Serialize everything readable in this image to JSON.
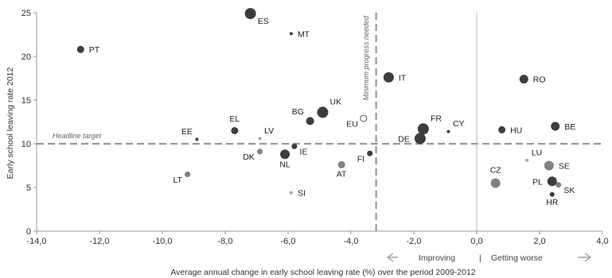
{
  "chart_data": {
    "type": "scatter",
    "title": "",
    "xlabel": "Average annual change in early school leaving rate (%) over the period 2009-2012",
    "ylabel": "Early school leaving rate 2012",
    "xlim": [
      -14,
      4
    ],
    "ylim": [
      0,
      25
    ],
    "x_ticks": [
      -14,
      -12,
      -10,
      -8,
      -6,
      -4,
      -2,
      0,
      2,
      4
    ],
    "x_tick_labels": [
      "-14,0",
      "-12,0",
      "-10,0",
      "-8,0",
      "-6,0",
      "-4,0",
      "-2,0",
      "0,0",
      "2,0",
      "4,0"
    ],
    "y_ticks": [
      0,
      5,
      10,
      15,
      20,
      25
    ],
    "y_tick_labels": [
      "0",
      "5",
      "10",
      "15",
      "20",
      "25"
    ],
    "grid": false,
    "reference_lines": {
      "headline_target": {
        "y": 10,
        "label": "Headline target"
      },
      "minimum_progress": {
        "x": -3.2,
        "label": "Minimum progress needed"
      },
      "zero_line": {
        "x": 0
      }
    },
    "direction_labels": {
      "improving": "Improving",
      "separator": "|",
      "worse": "Getting worse"
    },
    "colors": {
      "dark": "#3d3d3d",
      "mid": "#808080",
      "light": "#a8a8a8",
      "refline": "#999999",
      "axis": "#999999"
    },
    "points": [
      {
        "label": "ES",
        "x": -7.2,
        "y": 24.9,
        "size": 7,
        "shade": "dark",
        "label_pos": "below-right"
      },
      {
        "label": "MT",
        "x": -5.9,
        "y": 22.6,
        "size": 2,
        "shade": "dark",
        "label_pos": "right"
      },
      {
        "label": "PT",
        "x": -12.6,
        "y": 20.8,
        "size": 4.5,
        "shade": "dark",
        "label_pos": "right"
      },
      {
        "label": "IT",
        "x": -2.8,
        "y": 17.6,
        "size": 6.5,
        "shade": "dark",
        "label_pos": "right"
      },
      {
        "label": "RO",
        "x": 1.5,
        "y": 17.4,
        "size": 5.5,
        "shade": "dark",
        "label_pos": "right"
      },
      {
        "label": "UK",
        "x": -4.9,
        "y": 13.6,
        "size": 7,
        "shade": "dark",
        "label_pos": "above-right"
      },
      {
        "label": "BG",
        "x": -5.3,
        "y": 12.6,
        "size": 5,
        "shade": "dark",
        "label_pos": "above-left"
      },
      {
        "label": "EU",
        "x": -3.6,
        "y": 12.9,
        "size": 4,
        "shade": "hollow",
        "label_pos": "below-left"
      },
      {
        "label": "FR",
        "x": -1.7,
        "y": 11.7,
        "size": 7,
        "shade": "dark",
        "label_pos": "above-right"
      },
      {
        "label": "DE",
        "x": -1.8,
        "y": 10.6,
        "size": 7,
        "shade": "dark",
        "label_pos": "left"
      },
      {
        "label": "CY",
        "x": -0.9,
        "y": 11.4,
        "size": 2,
        "shade": "dark",
        "label_pos": "above-right"
      },
      {
        "label": "HU",
        "x": 0.8,
        "y": 11.6,
        "size": 4.5,
        "shade": "dark",
        "label_pos": "right"
      },
      {
        "label": "BE",
        "x": 2.5,
        "y": 12.0,
        "size": 5.5,
        "shade": "dark",
        "label_pos": "right"
      },
      {
        "label": "EL",
        "x": -7.7,
        "y": 11.5,
        "size": 4.5,
        "shade": "dark",
        "label_pos": "above"
      },
      {
        "label": "EE",
        "x": -8.9,
        "y": 10.5,
        "size": 2,
        "shade": "dark",
        "label_pos": "above-left"
      },
      {
        "label": "LV",
        "x": -6.9,
        "y": 10.6,
        "size": 2,
        "shade": "light",
        "label_pos": "above-right"
      },
      {
        "label": "DK",
        "x": -6.9,
        "y": 9.1,
        "size": 3.5,
        "shade": "mid",
        "label_pos": "below-left"
      },
      {
        "label": "NL",
        "x": -6.1,
        "y": 8.8,
        "size": 6,
        "shade": "dark",
        "label_pos": "below"
      },
      {
        "label": "IE",
        "x": -5.8,
        "y": 9.7,
        "size": 3.5,
        "shade": "dark",
        "label_pos": "below-right"
      },
      {
        "label": "AT",
        "x": -4.3,
        "y": 7.6,
        "size": 4.5,
        "shade": "mid",
        "label_pos": "below"
      },
      {
        "label": "FI",
        "x": -3.4,
        "y": 8.9,
        "size": 3.5,
        "shade": "dark",
        "label_pos": "below-left"
      },
      {
        "label": "LT",
        "x": -9.2,
        "y": 6.5,
        "size": 3.5,
        "shade": "mid",
        "label_pos": "below-left"
      },
      {
        "label": "SI",
        "x": -5.9,
        "y": 4.4,
        "size": 2,
        "shade": "light",
        "label_pos": "right"
      },
      {
        "label": "LU",
        "x": 1.6,
        "y": 8.1,
        "size": 2,
        "shade": "light",
        "label_pos": "above-right"
      },
      {
        "label": "SE",
        "x": 2.3,
        "y": 7.5,
        "size": 6,
        "shade": "mid",
        "label_pos": "right"
      },
      {
        "label": "CZ",
        "x": 0.6,
        "y": 5.5,
        "size": 6,
        "shade": "mid",
        "label_pos": "above"
      },
      {
        "label": "PL",
        "x": 2.4,
        "y": 5.7,
        "size": 6,
        "shade": "dark",
        "label_pos": "left"
      },
      {
        "label": "SK",
        "x": 2.6,
        "y": 5.3,
        "size": 3.5,
        "shade": "mid",
        "label_pos": "below-right"
      },
      {
        "label": "HR",
        "x": 2.4,
        "y": 4.2,
        "size": 3,
        "shade": "dark",
        "label_pos": "below"
      }
    ]
  }
}
